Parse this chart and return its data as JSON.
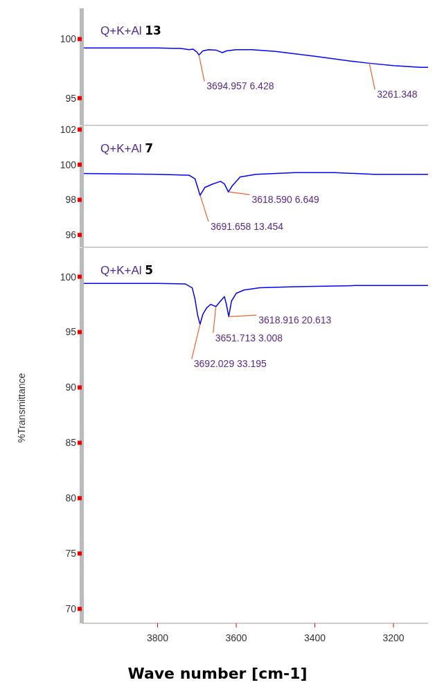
{
  "chart_data": [
    {
      "type": "line",
      "title": "Q+K+Al 13",
      "xlim": [
        3993,
        3112
      ],
      "ylim": [
        92.7,
        102.6
      ],
      "yticks": [
        95,
        100
      ],
      "tick_labels": "y",
      "series": [
        {
          "color": "#0000ff",
          "x": [
            3993,
            3800,
            3740,
            3720,
            3710,
            3700,
            3695,
            3685,
            3670,
            3650,
            3635,
            3625,
            3600,
            3560,
            3500,
            3400,
            3300,
            3261,
            3200,
            3130,
            3112
          ],
          "values": [
            99.25,
            99.25,
            99.2,
            99.1,
            99.15,
            98.9,
            98.65,
            99.0,
            99.1,
            99.05,
            98.85,
            99.0,
            99.1,
            99.1,
            98.95,
            98.55,
            98.1,
            97.95,
            97.75,
            97.6,
            97.6
          ]
        }
      ],
      "annotations": [
        {
          "text": "3694.957 6.428",
          "x": 3694.957,
          "y": 98.65
        },
        {
          "text": "3261.348",
          "x": 3261.348,
          "y": 97.95
        }
      ]
    },
    {
      "type": "line",
      "title": "Q+K+Al 7",
      "xlim": [
        3993,
        3112
      ],
      "ylim": [
        95.3,
        102.2
      ],
      "yticks": [
        96,
        98,
        100,
        102
      ],
      "tick_labels": "y",
      "series": [
        {
          "color": "#0000ff",
          "x": [
            3993,
            3800,
            3720,
            3705,
            3698,
            3692,
            3680,
            3660,
            3640,
            3630,
            3620,
            3610,
            3590,
            3550,
            3450,
            3350,
            3250,
            3112
          ],
          "values": [
            99.5,
            99.45,
            99.4,
            99.2,
            98.7,
            98.25,
            98.7,
            98.9,
            99.05,
            98.9,
            98.45,
            98.8,
            99.3,
            99.45,
            99.55,
            99.55,
            99.45,
            99.45
          ]
        }
      ],
      "annotations": [
        {
          "text": "3691.658 13.454",
          "x": 3691.658,
          "y": 98.25
        },
        {
          "text": "3618.590 6.649",
          "x": 3618.59,
          "y": 98.45
        }
      ]
    },
    {
      "type": "line",
      "title": "Q+K+Al 5",
      "xlabel": "Wave number [cm-1]",
      "ylabel": "%Transmittance",
      "xlim": [
        3993,
        3112
      ],
      "ylim": [
        68.7,
        102.6
      ],
      "xticks": [
        3800,
        3600,
        3400,
        3200
      ],
      "yticks": [
        70,
        75,
        80,
        85,
        90,
        95,
        100
      ],
      "series": [
        {
          "color": "#0000ff",
          "x": [
            3993,
            3800,
            3730,
            3712,
            3705,
            3698,
            3692,
            3685,
            3675,
            3665,
            3658,
            3651.7,
            3640,
            3630,
            3625,
            3619,
            3612,
            3600,
            3580,
            3540,
            3450,
            3300,
            3112
          ],
          "values": [
            99.4,
            99.4,
            99.35,
            99.0,
            98.0,
            96.5,
            95.7,
            96.6,
            97.2,
            97.5,
            97.4,
            97.3,
            97.8,
            98.2,
            97.5,
            96.4,
            97.8,
            98.5,
            98.8,
            99.0,
            99.1,
            99.2,
            99.2
          ]
        }
      ],
      "annotations": [
        {
          "text": "3692.029 33.195",
          "x": 3692.029,
          "y": 95.7
        },
        {
          "text": "3651.713 3.008",
          "x": 3651.713,
          "y": 97.3
        },
        {
          "text": "3618.916 20.613",
          "x": 3618.916,
          "y": 96.4
        }
      ]
    }
  ]
}
